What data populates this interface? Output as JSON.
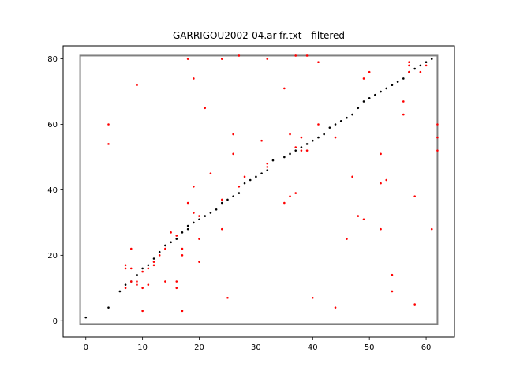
{
  "chart_data": {
    "type": "scatter",
    "title": "GARRIGOU2002-04.ar-fr.txt - filtered",
    "xlabel": "",
    "ylabel": "",
    "xlim": [
      -4,
      65
    ],
    "ylim": [
      -5,
      84
    ],
    "xticks": [
      0,
      10,
      20,
      30,
      40,
      50,
      60
    ],
    "yticks": [
      0,
      20,
      40,
      60,
      80
    ],
    "grid": false,
    "colors": {
      "path": "#000000",
      "points": "#ff0000",
      "box": "#808080"
    },
    "box": {
      "x": [
        -1,
        62
      ],
      "y": [
        -1,
        81
      ]
    },
    "series": [
      {
        "points": [
          [
            0,
            1
          ],
          [
            4,
            4
          ],
          [
            6,
            9
          ],
          [
            7,
            11
          ],
          [
            8,
            12
          ],
          [
            9,
            14
          ],
          [
            10,
            16
          ],
          [
            11,
            17
          ],
          [
            12,
            19
          ],
          [
            13,
            21
          ],
          [
            14,
            23
          ],
          [
            15,
            24
          ],
          [
            16,
            25
          ],
          [
            17,
            27
          ],
          [
            18,
            28
          ],
          [
            18,
            29
          ],
          [
            19,
            30
          ],
          [
            20,
            31
          ],
          [
            21,
            32
          ],
          [
            22,
            33
          ],
          [
            23,
            34
          ],
          [
            24,
            36
          ],
          [
            25,
            37
          ],
          [
            26,
            38
          ],
          [
            27,
            39
          ],
          [
            28,
            42
          ],
          [
            29,
            43
          ],
          [
            30,
            44
          ],
          [
            31,
            45
          ],
          [
            32,
            46
          ],
          [
            33,
            49
          ],
          [
            35,
            50
          ],
          [
            36,
            51
          ],
          [
            37,
            52
          ],
          [
            38,
            53
          ],
          [
            39,
            54
          ],
          [
            40,
            55
          ],
          [
            41,
            56
          ],
          [
            42,
            57
          ],
          [
            43,
            59
          ],
          [
            44,
            60
          ],
          [
            45,
            61
          ],
          [
            46,
            62
          ],
          [
            47,
            63
          ],
          [
            48,
            65
          ],
          [
            49,
            67
          ],
          [
            50,
            68
          ],
          [
            51,
            69
          ],
          [
            52,
            70
          ],
          [
            53,
            71
          ],
          [
            54,
            72
          ],
          [
            55,
            73
          ],
          [
            56,
            74
          ],
          [
            57,
            76
          ],
          [
            58,
            77
          ],
          [
            59,
            78
          ],
          [
            60,
            79
          ],
          [
            61,
            80
          ]
        ]
      },
      {
        "points": [
          [
            4,
            60
          ],
          [
            4,
            54
          ],
          [
            7,
            17
          ],
          [
            7,
            16
          ],
          [
            7,
            10
          ],
          [
            8,
            22
          ],
          [
            8,
            16
          ],
          [
            8,
            12
          ],
          [
            9,
            72
          ],
          [
            9,
            11
          ],
          [
            9,
            12
          ],
          [
            10,
            15
          ],
          [
            10,
            10
          ],
          [
            10,
            3
          ],
          [
            11,
            16
          ],
          [
            11,
            11
          ],
          [
            12,
            17
          ],
          [
            12,
            18
          ],
          [
            13,
            20
          ],
          [
            14,
            22
          ],
          [
            14,
            12
          ],
          [
            15,
            27
          ],
          [
            16,
            26
          ],
          [
            16,
            12
          ],
          [
            16,
            10
          ],
          [
            17,
            22
          ],
          [
            17,
            20
          ],
          [
            17,
            3
          ],
          [
            18,
            80
          ],
          [
            18,
            36
          ],
          [
            19,
            74
          ],
          [
            19,
            41
          ],
          [
            19,
            33
          ],
          [
            20,
            32
          ],
          [
            20,
            25
          ],
          [
            20,
            18
          ],
          [
            21,
            65
          ],
          [
            22,
            45
          ],
          [
            24,
            80
          ],
          [
            24,
            37
          ],
          [
            24,
            28
          ],
          [
            25,
            7
          ],
          [
            26,
            57
          ],
          [
            26,
            51
          ],
          [
            27,
            81
          ],
          [
            27,
            41
          ],
          [
            28,
            44
          ],
          [
            31,
            55
          ],
          [
            32,
            80
          ],
          [
            32,
            48
          ],
          [
            32,
            47
          ],
          [
            35,
            71
          ],
          [
            35,
            36
          ],
          [
            36,
            57
          ],
          [
            36,
            38
          ],
          [
            37,
            81
          ],
          [
            37,
            53
          ],
          [
            37,
            39
          ],
          [
            38,
            56
          ],
          [
            38,
            52
          ],
          [
            39,
            81
          ],
          [
            39,
            52
          ],
          [
            40,
            7
          ],
          [
            41,
            79
          ],
          [
            41,
            60
          ],
          [
            44,
            56
          ],
          [
            44,
            4
          ],
          [
            46,
            25
          ],
          [
            47,
            44
          ],
          [
            48,
            32
          ],
          [
            49,
            74
          ],
          [
            49,
            31
          ],
          [
            50,
            76
          ],
          [
            52,
            51
          ],
          [
            52,
            42
          ],
          [
            52,
            28
          ],
          [
            53,
            43
          ],
          [
            54,
            14
          ],
          [
            54,
            9
          ],
          [
            56,
            67
          ],
          [
            56,
            63
          ],
          [
            57,
            79
          ],
          [
            57,
            78
          ],
          [
            57,
            76
          ],
          [
            58,
            38
          ],
          [
            58,
            5
          ],
          [
            59,
            76
          ],
          [
            60,
            78
          ],
          [
            61,
            28
          ],
          [
            62,
            60
          ],
          [
            62,
            56
          ],
          [
            62,
            52
          ]
        ]
      }
    ]
  }
}
